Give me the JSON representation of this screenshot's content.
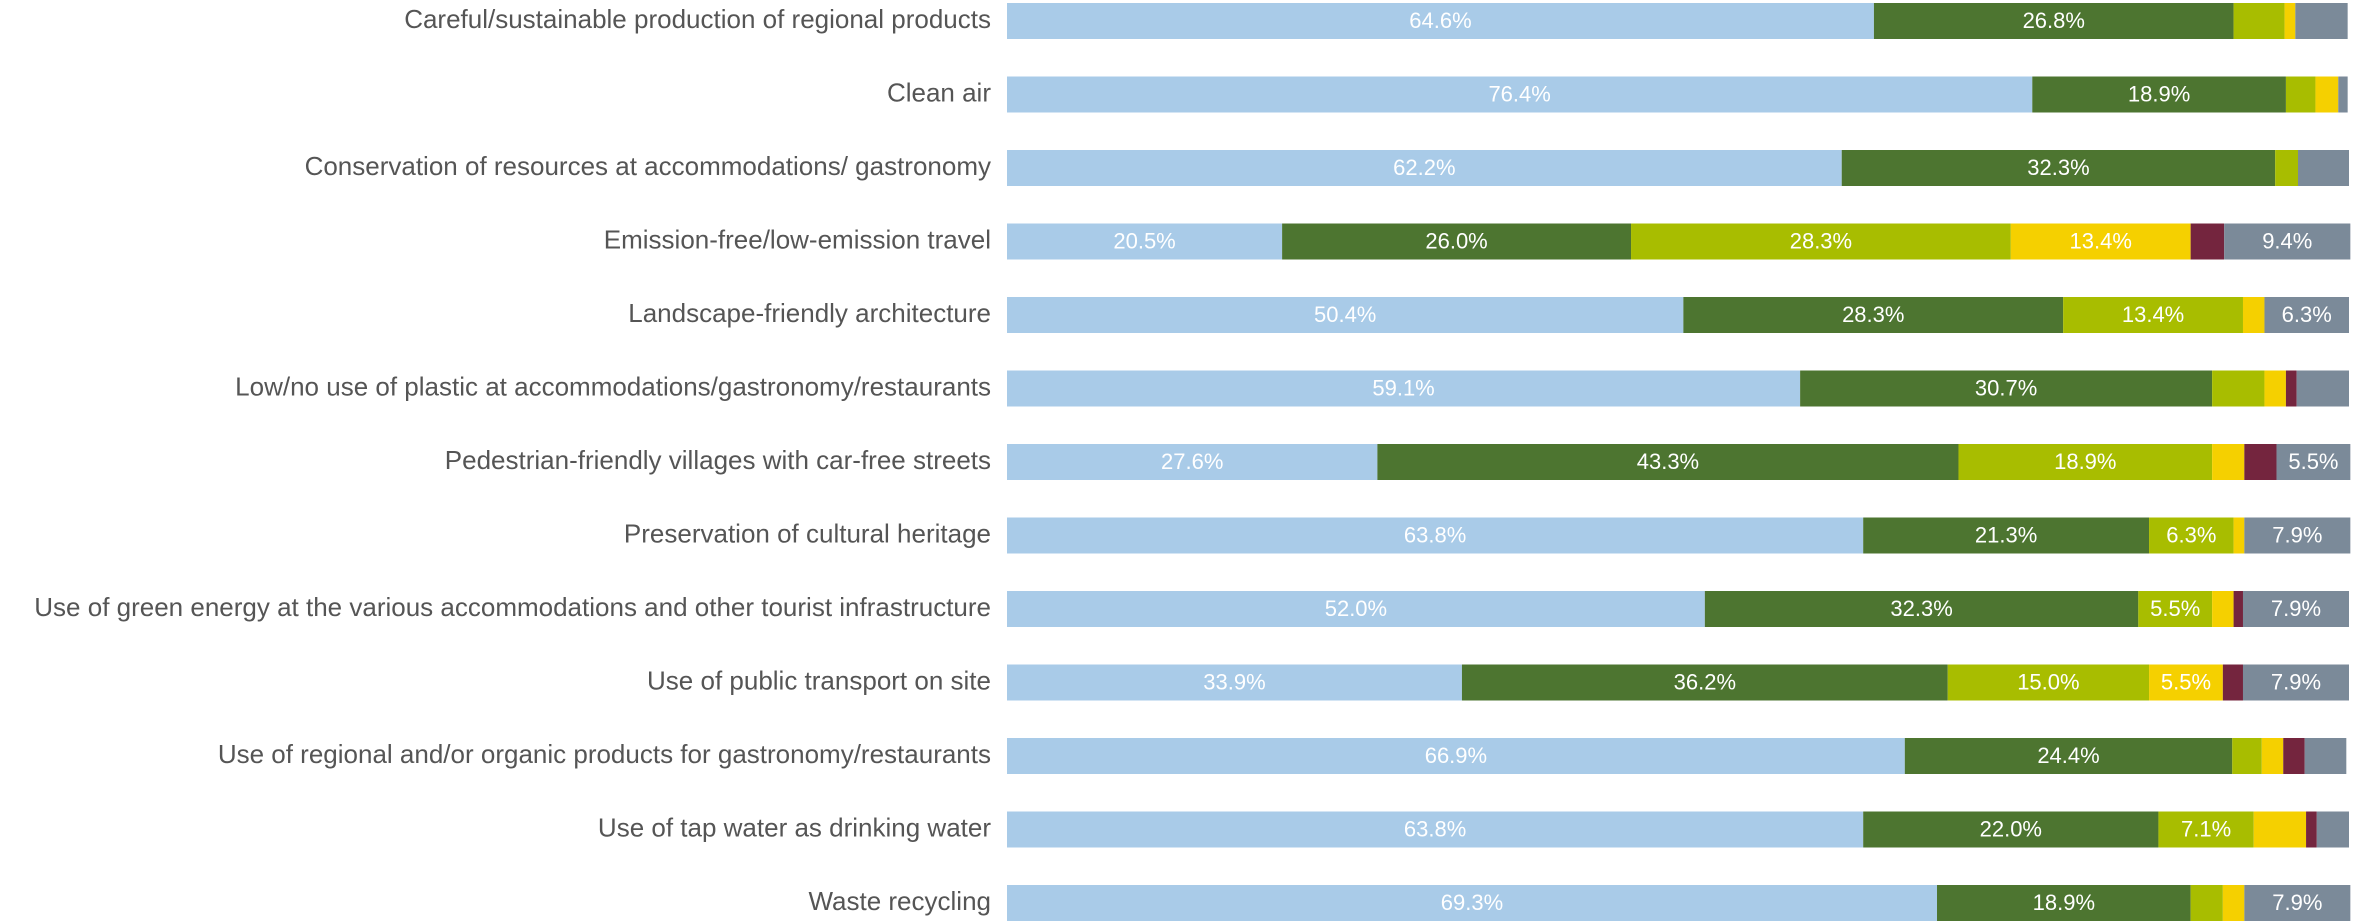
{
  "chart_data": {
    "type": "stacked-bar-horizontal",
    "categories": [
      "Careful/sustainable production of regional products",
      "Clean air",
      "Conservation of resources at accommodations/ gastronomy",
      "Emission-free/low-emission travel",
      "Landscape-friendly architecture",
      "Low/no use of plastic at accommodations/gastronomy/restaurants",
      "Pedestrian-friendly villages with car-free streets",
      "Preservation of cultural heritage",
      "Use of green energy at the various accommodations and other tourist infrastructure",
      "Use of public transport on site",
      "Use of regional and/or organic products for gastronomy/restaurants",
      "Use of tap water as drinking water",
      "Waste recycling"
    ],
    "xlim": [
      0,
      100
    ],
    "series": [
      {
        "color": "#a9cbe8",
        "values": [
          64.6,
          76.4,
          62.2,
          20.5,
          50.4,
          59.1,
          27.6,
          63.8,
          52.0,
          33.9,
          66.9,
          63.8,
          69.3
        ],
        "value_labels": [
          "64.6%",
          "76.4%",
          "62.2%",
          "20.5%",
          "50.4%",
          "59.1%",
          "27.6%",
          "63.8%",
          "52.0%",
          "33.9%",
          "66.9%",
          "63.8%",
          "69.3%"
        ]
      },
      {
        "color": "#4d7530",
        "values": [
          26.8,
          18.9,
          32.3,
          26.0,
          28.3,
          30.7,
          43.3,
          21.3,
          32.3,
          36.2,
          24.4,
          22.0,
          18.9
        ],
        "value_labels": [
          "26.8%",
          "18.9%",
          "32.3%",
          "26.0%",
          "28.3%",
          "30.7%",
          "43.3%",
          "21.3%",
          "32.3%",
          "36.2%",
          "24.4%",
          "22.0%",
          "18.9%"
        ]
      },
      {
        "color": "#a8bd00",
        "values": [
          3.8,
          2.2,
          1.7,
          28.3,
          13.4,
          3.9,
          18.9,
          6.3,
          5.5,
          15.0,
          2.2,
          7.1,
          2.4
        ],
        "value_labels": [
          null,
          null,
          null,
          "28.3%",
          "13.4%",
          null,
          "18.9%",
          "6.3%",
          "5.5%",
          "15.0%",
          null,
          "7.1%",
          null
        ]
      },
      {
        "color": "#f5d000",
        "values": [
          0.8,
          1.7,
          0,
          13.4,
          1.6,
          1.6,
          2.4,
          0.8,
          1.6,
          5.5,
          1.6,
          3.9,
          1.6
        ],
        "value_labels": [
          null,
          null,
          null,
          "13.4%",
          null,
          null,
          null,
          null,
          null,
          "5.5%",
          null,
          null,
          null
        ]
      },
      {
        "color": "#74253e",
        "values": [
          0,
          0,
          0,
          2.5,
          0,
          0.8,
          2.4,
          0,
          0.7,
          1.5,
          1.6,
          0.8,
          0
        ],
        "value_labels": [
          null,
          null,
          null,
          null,
          null,
          null,
          null,
          null,
          null,
          null,
          null,
          null,
          null
        ]
      },
      {
        "color": "#7b8a99",
        "values": [
          3.9,
          0.7,
          3.8,
          9.4,
          6.3,
          3.9,
          5.5,
          7.9,
          7.9,
          7.9,
          3.1,
          2.4,
          7.9
        ],
        "value_labels": [
          null,
          null,
          null,
          "9.4%",
          "6.3%",
          null,
          "5.5%",
          "7.9%",
          "7.9%",
          "7.9%",
          null,
          null,
          "7.9%"
        ]
      }
    ]
  }
}
